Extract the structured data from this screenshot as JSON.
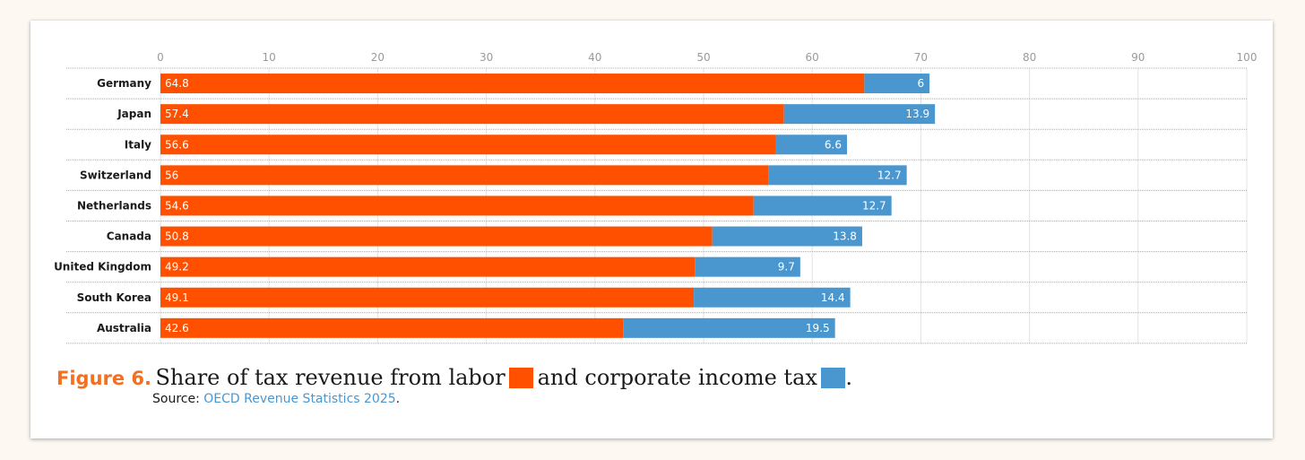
{
  "chart_data": {
    "type": "bar",
    "orientation": "horizontal",
    "stacked": true,
    "categories": [
      "Germany",
      "Japan",
      "Italy",
      "Switzerland",
      "Netherlands",
      "Canada",
      "United Kingdom",
      "South Korea",
      "Australia"
    ],
    "series": [
      {
        "name": "Labor",
        "color": "#ff5000",
        "values": [
          64.8,
          57.4,
          56.6,
          56,
          54.6,
          50.8,
          49.2,
          49.1,
          42.6
        ],
        "labels": [
          "64.8",
          "57.4",
          "56.6",
          "56",
          "54.6",
          "50.8",
          "49.2",
          "49.1",
          "42.6"
        ]
      },
      {
        "name": "Corporate income tax",
        "color": "#4a97d0",
        "values": [
          6,
          13.9,
          6.6,
          12.7,
          12.7,
          13.8,
          9.7,
          14.4,
          19.5
        ],
        "labels": [
          "6",
          "13.9",
          "6.6",
          "12.7",
          "12.7",
          "13.8",
          "9.7",
          "14.4",
          "19.5"
        ]
      }
    ],
    "xlim": [
      0,
      100
    ],
    "xticks": [
      0,
      10,
      20,
      30,
      40,
      50,
      60,
      70,
      80,
      90,
      100
    ],
    "xtick_labels": [
      "0",
      "10",
      "20",
      "30",
      "40",
      "50",
      "60",
      "70",
      "80",
      "90",
      "100"
    ],
    "axis_position": "top",
    "grid": true
  },
  "caption": {
    "figure_number": "Figure 6.",
    "title_part1": "Share of tax revenue from labor",
    "title_part2": "and corporate income tax",
    "title_end": ".",
    "source_prefix": "Source: ",
    "source_link": "OECD Revenue Statistics 2025",
    "source_end": ".",
    "labor_color": "#ff5000",
    "corp_color": "#4a97d0"
  }
}
